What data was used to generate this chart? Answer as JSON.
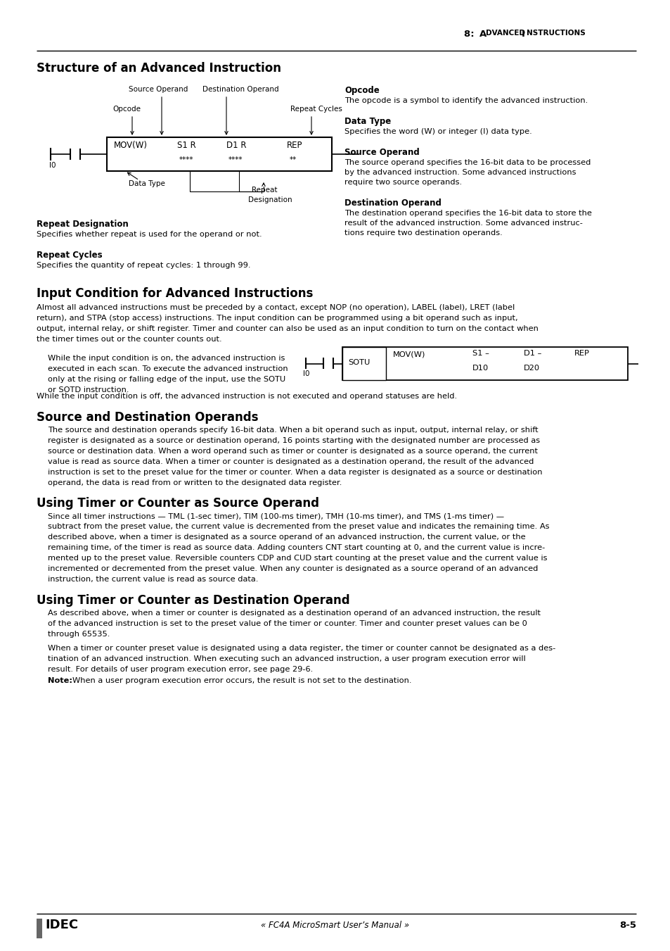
{
  "section1_title": "Structure of an Advanced Instruction",
  "section2_title": "Input Condition for Advanced Instructions",
  "section3_title": "Source and Destination Operands",
  "section4_title": "Using Timer or Counter as Source Operand",
  "section5_title": "Using Timer or Counter as Destination Operand",
  "footer_logo": "IDEC",
  "footer_center": "« FC4A MicroSmart User’s Manual »",
  "footer_right": "8-5",
  "opcode_bold": "Opcode",
  "opcode_text": "The opcode is a symbol to identify the advanced instruction.",
  "datatype_bold": "Data Type",
  "datatype_text": "Specifies the word (W) or integer (I) data type.",
  "source_op_bold": "Source Operand",
  "source_op_text1": "The source operand specifies the 16-bit data to be processed",
  "source_op_text2": "by the advanced instruction. Some advanced instructions",
  "source_op_text3": "require two source operands.",
  "dest_op_bold": "Destination Operand",
  "dest_op_text1": "The destination operand specifies the 16-bit data to store the",
  "dest_op_text2": "result of the advanced instruction. Some advanced instruc-",
  "dest_op_text3": "tions require two destination operands.",
  "repeat_desig_bold": "Repeat Designation",
  "repeat_desig_text": "Specifies whether repeat is used for the operand or not.",
  "repeat_cycles_bold": "Repeat Cycles",
  "repeat_cycles_text": "Specifies the quantity of repeat cycles: 1 through 99.",
  "s2p1l1": "Almost all advanced instructions must be preceded by a contact, except NOP (no operation), LABEL (label), LRET (label",
  "s2p1l2": "return), and STPA (stop access) instructions. The input condition can be programmed using a bit operand such as input,",
  "s2p1l3": "output, internal relay, or shift register. Timer and counter can also be used as an input condition to turn on the contact when",
  "s2p1l4": "the timer times out or the counter counts out.",
  "s2p2l1": "While the input condition is on, the advanced instruction is",
  "s2p2l2": "executed in each scan. To execute the advanced instruction",
  "s2p2l3": "only at the rising or falling edge of the input, use the SOTU",
  "s2p2l4": "or SOTD instruction.",
  "s2p3": "While the input condition is off, the advanced instruction is not executed and operand statuses are held.",
  "s3p1l1": "The source and destination operands specify 16-bit data. When a bit operand such as input, output, internal relay, or shift",
  "s3p1l2": "register is designated as a source or destination operand, 16 points starting with the designated number are processed as",
  "s3p1l3": "source or destination data. When a word operand such as timer or counter is designated as a source operand, the current",
  "s3p1l4": "value is read as source data. When a timer or counter is designated as a destination operand, the result of the advanced",
  "s3p1l5": "instruction is set to the preset value for the timer or counter. When a data register is designated as a source or destination",
  "s3p1l6": "operand, the data is read from or written to the designated data register.",
  "s4p1l1": "Since all timer instructions — TML (1-sec timer), TIM (100-ms timer), TMH (10-ms timer), and TMS (1-ms timer) —",
  "s4p1l2": "subtract from the preset value, the current value is decremented from the preset value and indicates the remaining time. As",
  "s4p1l3": "described above, when a timer is designated as a source operand of an advanced instruction, the current value, or the",
  "s4p1l4": "remaining time, of the timer is read as source data. Adding counters CNT start counting at 0, and the current value is incre-",
  "s4p1l5": "mented up to the preset value. Reversible counters CDP and CUD start counting at the preset value and the current value is",
  "s4p1l6": "incremented or decremented from the preset value. When any counter is designated as a source operand of an advanced",
  "s4p1l7": "instruction, the current value is read as source data.",
  "s5p1l1": "As described above, when a timer or counter is designated as a destination operand of an advanced instruction, the result",
  "s5p1l2": "of the advanced instruction is set to the preset value of the timer or counter. Timer and counter preset values can be 0",
  "s5p1l3": "through 65535.",
  "s5p2l1": "When a timer or counter preset value is designated using a data register, the timer or counter cannot be designated as a des-",
  "s5p2l2": "tination of an advanced instruction. When executing such an advanced instruction, a user program execution error will",
  "s5p2l3": "result. For details of user program execution error, see page 29-6.",
  "s5note": "When a user program execution error occurs, the result is not set to the destination.",
  "bg_color": "#ffffff"
}
